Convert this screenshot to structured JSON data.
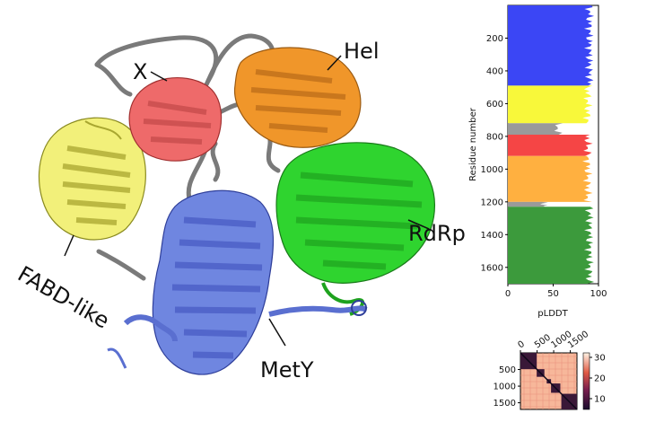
{
  "domains": {
    "x": "X",
    "hel": "Hel",
    "fabd": "FABD-like",
    "rdrp": "RdRp",
    "mety": "MetY"
  },
  "colors": {
    "mety": "#6f86e0",
    "x": "#ee6a6a",
    "hel": "#f0962a",
    "rdrp": "#2fd42f",
    "fabd": "#f2f07a",
    "linker": "#7a7a7a"
  },
  "chart_data": [
    {
      "type": "area",
      "xlabel": "pLDDT",
      "ylabel": "Residue number",
      "xlim": [
        0,
        100
      ],
      "ylim": [
        1700,
        0
      ],
      "xticks": [
        "0",
        "50",
        "100"
      ],
      "yticks": [
        "200",
        "400",
        "600",
        "800",
        "1000",
        "1200",
        "1400",
        "1600"
      ],
      "segments": [
        {
          "start": 0,
          "end": 490,
          "color": "#3b46f5",
          "plddt": 90
        },
        {
          "start": 490,
          "end": 720,
          "color": "#f8f83a",
          "plddt": 88
        },
        {
          "start": 720,
          "end": 790,
          "color": "#9a9a9a",
          "plddt": 55
        },
        {
          "start": 790,
          "end": 920,
          "color": "#f54545",
          "plddt": 88
        },
        {
          "start": 920,
          "end": 1200,
          "color": "#ffb040",
          "plddt": 88
        },
        {
          "start": 1200,
          "end": 1230,
          "color": "#9a9a9a",
          "plddt": 40
        },
        {
          "start": 1230,
          "end": 1700,
          "color": "#3c9a3c",
          "plddt": 90
        }
      ]
    },
    {
      "type": "heatmap",
      "xticks": [
        "0",
        "500",
        "1000",
        "1500"
      ],
      "yticks": [
        "500",
        "1000",
        "1500"
      ],
      "colorbar_ticks": [
        "30",
        "20",
        "10"
      ],
      "range": [
        0,
        1700
      ],
      "blocks": [
        [
          0,
          490
        ],
        [
          490,
          720
        ],
        [
          790,
          920
        ],
        [
          920,
          1200
        ],
        [
          1230,
          1700
        ]
      ]
    }
  ]
}
